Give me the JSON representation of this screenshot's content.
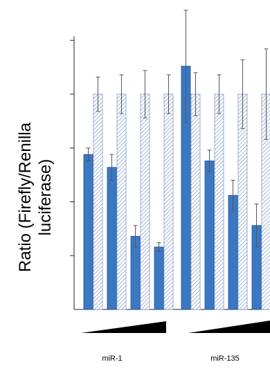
{
  "chart_data": {
    "type": "bar",
    "ylabel_lines": [
      "Ratio (Firefly/Renilla",
      "luciferase)"
    ],
    "ylim": [
      0,
      1.25
    ],
    "ytick_values": [
      0.25,
      0.5,
      0.75,
      1.0,
      1.25
    ],
    "tick_labels_shown": false,
    "grid": false,
    "legend": "none",
    "groups": [
      {
        "label": "miR-1",
        "pairs": [
          {
            "solid": 0.72,
            "solid_err": 0.03,
            "hatched": 1.0,
            "hatched_err": 0.08
          },
          {
            "solid": 0.66,
            "solid_err": 0.06,
            "hatched": 1.0,
            "hatched_err": 0.09
          },
          {
            "solid": 0.34,
            "solid_err": 0.05,
            "hatched": 1.0,
            "hatched_err": 0.11
          },
          {
            "solid": 0.29,
            "solid_err": 0.02,
            "hatched": 1.0,
            "hatched_err": 0.09
          }
        ]
      },
      {
        "label": "miR-135",
        "pairs": [
          {
            "solid": 1.13,
            "solid_err": 0.26,
            "hatched": 1.0,
            "hatched_err": 0.1
          },
          {
            "solid": 0.69,
            "solid_err": 0.05,
            "hatched": 1.0,
            "hatched_err": 0.09
          },
          {
            "solid": 0.53,
            "solid_err": 0.07,
            "hatched": 1.0,
            "hatched_err": 0.16
          },
          {
            "solid": 0.39,
            "solid_err": 0.1,
            "hatched": 1.0,
            "hatched_err": 0.21
          }
        ]
      }
    ],
    "colors": {
      "solid_fill": "#3a78c4",
      "solid_stroke": "#1f4f8f",
      "hatch_line": "#7d98c8",
      "hatch_bg": "#ffffff",
      "error_bar": "#555555",
      "axis": "#222222",
      "wedge": "#000000"
    }
  }
}
